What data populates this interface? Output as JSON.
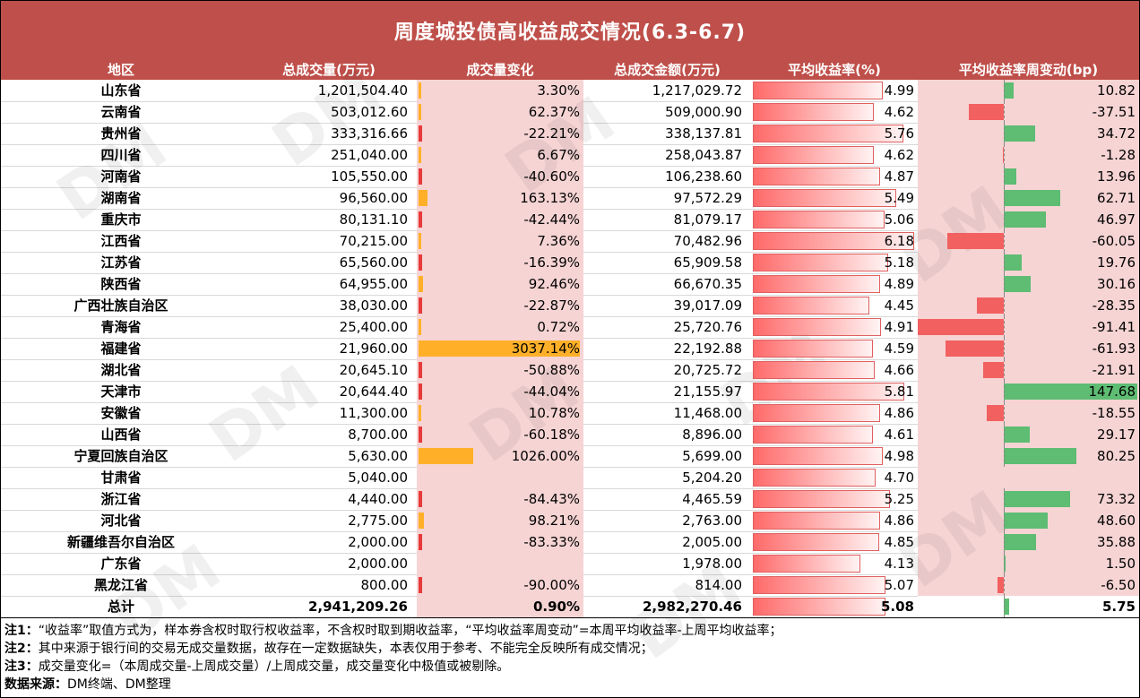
{
  "title": "周度城投债高收益成交情况(6.3-6.7)",
  "headers": [
    "地区",
    "总成交量(万元)",
    "成交量变化",
    "总成交金额(万元)",
    "平均收益率(%)",
    "平均收益率周变动(bp)"
  ],
  "colors": {
    "title_bg": "#bf4f4a",
    "vol_change_bar": "#ffb028",
    "vol_change_neg_bar": "#e83a3a",
    "yield_bar": "#ff6a6a",
    "weekly_pos": "#5ebc73",
    "weekly_neg": "#f26060",
    "band": "#f6d4d4"
  },
  "chart_data": {
    "type": "table",
    "rows": [
      {
        "region": "山东省",
        "volume": "1,201,504.40",
        "vol_change": 3.3,
        "vol_change_text": "3.30%",
        "amount": "1,217,029.72",
        "yield": 4.99,
        "yield_text": "4.99",
        "weekly_bp": 10.82,
        "weekly_text": "10.82"
      },
      {
        "region": "云南省",
        "volume": "503,012.60",
        "vol_change": 62.37,
        "vol_change_text": "62.37%",
        "amount": "509,000.90",
        "yield": 4.62,
        "yield_text": "4.62",
        "weekly_bp": -37.51,
        "weekly_text": "-37.51"
      },
      {
        "region": "贵州省",
        "volume": "333,316.66",
        "vol_change": -22.21,
        "vol_change_text": "-22.21%",
        "amount": "338,137.81",
        "yield": 5.76,
        "yield_text": "5.76",
        "weekly_bp": 34.72,
        "weekly_text": "34.72"
      },
      {
        "region": "四川省",
        "volume": "251,040.00",
        "vol_change": 6.67,
        "vol_change_text": "6.67%",
        "amount": "258,043.87",
        "yield": 4.62,
        "yield_text": "4.62",
        "weekly_bp": -1.28,
        "weekly_text": "-1.28"
      },
      {
        "region": "河南省",
        "volume": "105,550.00",
        "vol_change": -40.6,
        "vol_change_text": "-40.60%",
        "amount": "106,238.60",
        "yield": 4.87,
        "yield_text": "4.87",
        "weekly_bp": 13.96,
        "weekly_text": "13.96"
      },
      {
        "region": "湖南省",
        "volume": "96,560.00",
        "vol_change": 163.13,
        "vol_change_text": "163.13%",
        "amount": "97,572.29",
        "yield": 5.49,
        "yield_text": "5.49",
        "weekly_bp": 62.71,
        "weekly_text": "62.71"
      },
      {
        "region": "重庆市",
        "volume": "80,131.10",
        "vol_change": -42.44,
        "vol_change_text": "-42.44%",
        "amount": "81,079.17",
        "yield": 5.06,
        "yield_text": "5.06",
        "weekly_bp": 46.97,
        "weekly_text": "46.97"
      },
      {
        "region": "江西省",
        "volume": "70,215.00",
        "vol_change": 7.36,
        "vol_change_text": "7.36%",
        "amount": "70,482.96",
        "yield": 6.18,
        "yield_text": "6.18",
        "weekly_bp": -60.05,
        "weekly_text": "-60.05"
      },
      {
        "region": "江苏省",
        "volume": "65,560.00",
        "vol_change": -16.39,
        "vol_change_text": "-16.39%",
        "amount": "65,909.58",
        "yield": 5.18,
        "yield_text": "5.18",
        "weekly_bp": 19.76,
        "weekly_text": "19.76"
      },
      {
        "region": "陕西省",
        "volume": "64,955.00",
        "vol_change": 92.46,
        "vol_change_text": "92.46%",
        "amount": "66,670.35",
        "yield": 4.89,
        "yield_text": "4.89",
        "weekly_bp": 30.16,
        "weekly_text": "30.16"
      },
      {
        "region": "广西壮族自治区",
        "volume": "38,030.00",
        "vol_change": -22.87,
        "vol_change_text": "-22.87%",
        "amount": "39,017.09",
        "yield": 4.45,
        "yield_text": "4.45",
        "weekly_bp": -28.35,
        "weekly_text": "-28.35"
      },
      {
        "region": "青海省",
        "volume": "25,400.00",
        "vol_change": 0.72,
        "vol_change_text": "0.72%",
        "amount": "25,720.76",
        "yield": 4.91,
        "yield_text": "4.91",
        "weekly_bp": -91.41,
        "weekly_text": "-91.41"
      },
      {
        "region": "福建省",
        "volume": "21,960.00",
        "vol_change": 3037.14,
        "vol_change_text": "3037.14%",
        "amount": "22,192.88",
        "yield": 4.59,
        "yield_text": "4.59",
        "weekly_bp": -61.93,
        "weekly_text": "-61.93"
      },
      {
        "region": "湖北省",
        "volume": "20,645.10",
        "vol_change": -50.88,
        "vol_change_text": "-50.88%",
        "amount": "20,725.72",
        "yield": 4.66,
        "yield_text": "4.66",
        "weekly_bp": -21.91,
        "weekly_text": "-21.91"
      },
      {
        "region": "天津市",
        "volume": "20,644.40",
        "vol_change": -44.04,
        "vol_change_text": "-44.04%",
        "amount": "21,155.97",
        "yield": 5.81,
        "yield_text": "5.81",
        "weekly_bp": 147.68,
        "weekly_text": "147.68"
      },
      {
        "region": "安徽省",
        "volume": "11,300.00",
        "vol_change": 10.78,
        "vol_change_text": "10.78%",
        "amount": "11,468.00",
        "yield": 4.86,
        "yield_text": "4.86",
        "weekly_bp": -18.55,
        "weekly_text": "-18.55"
      },
      {
        "region": "山西省",
        "volume": "8,700.00",
        "vol_change": -60.18,
        "vol_change_text": "-60.18%",
        "amount": "8,896.00",
        "yield": 4.61,
        "yield_text": "4.61",
        "weekly_bp": 29.17,
        "weekly_text": "29.17"
      },
      {
        "region": "宁夏回族自治区",
        "volume": "5,630.00",
        "vol_change": 1026.0,
        "vol_change_text": "1026.00%",
        "amount": "5,699.00",
        "yield": 4.98,
        "yield_text": "4.98",
        "weekly_bp": 80.25,
        "weekly_text": "80.25"
      },
      {
        "region": "甘肃省",
        "volume": "5,040.00",
        "vol_change": null,
        "vol_change_text": "",
        "amount": "5,204.20",
        "yield": 4.7,
        "yield_text": "4.70",
        "weekly_bp": null,
        "weekly_text": ""
      },
      {
        "region": "浙江省",
        "volume": "4,440.00",
        "vol_change": -84.43,
        "vol_change_text": "-84.43%",
        "amount": "4,465.59",
        "yield": 5.25,
        "yield_text": "5.25",
        "weekly_bp": 73.32,
        "weekly_text": "73.32"
      },
      {
        "region": "河北省",
        "volume": "2,775.00",
        "vol_change": 98.21,
        "vol_change_text": "98.21%",
        "amount": "2,763.00",
        "yield": 4.86,
        "yield_text": "4.86",
        "weekly_bp": 48.6,
        "weekly_text": "48.60"
      },
      {
        "region": "新疆维吾尔自治区",
        "volume": "2,000.00",
        "vol_change": -83.33,
        "vol_change_text": "-83.33%",
        "amount": "2,005.00",
        "yield": 4.85,
        "yield_text": "4.85",
        "weekly_bp": 35.88,
        "weekly_text": "35.88"
      },
      {
        "region": "广东省",
        "volume": "2,000.00",
        "vol_change": null,
        "vol_change_text": "",
        "amount": "1,978.00",
        "yield": 4.13,
        "yield_text": "4.13",
        "weekly_bp": 1.5,
        "weekly_text": "1.50"
      },
      {
        "region": "黑龙江省",
        "volume": "800.00",
        "vol_change": -90.0,
        "vol_change_text": "-90.00%",
        "amount": "814.00",
        "yield": 5.07,
        "yield_text": "5.07",
        "weekly_bp": -6.5,
        "weekly_text": "-6.50"
      }
    ],
    "total": {
      "region": "总计",
      "volume": "2,941,209.26",
      "vol_change": 0.9,
      "vol_change_text": "0.90%",
      "amount": "2,982,270.46",
      "yield": 5.08,
      "yield_text": "5.08",
      "weekly_bp": 5.75,
      "weekly_text": "5.75"
    }
  },
  "notes": [
    {
      "label": "注1：",
      "text": "“收益率”取值方式为，样本券含权时取行权收益率，不含权时取到期收益率，“平均收益率周变动”=本周平均收益率-上周平均收益率；"
    },
    {
      "label": "注2：",
      "text": "其中来源于银行间的交易无成交量数据，故存在一定数据缺失，本表仅用于参考、不能完全反映所有成交情况；"
    },
    {
      "label": "注3：",
      "text": "成交量变化=（本周成交量-上周成交量）/上周成交量，成交量变化中极值或被剔除。"
    },
    {
      "label": "数据来源：",
      "text": "DM终端、DM整理"
    }
  ],
  "watermark": "DM"
}
